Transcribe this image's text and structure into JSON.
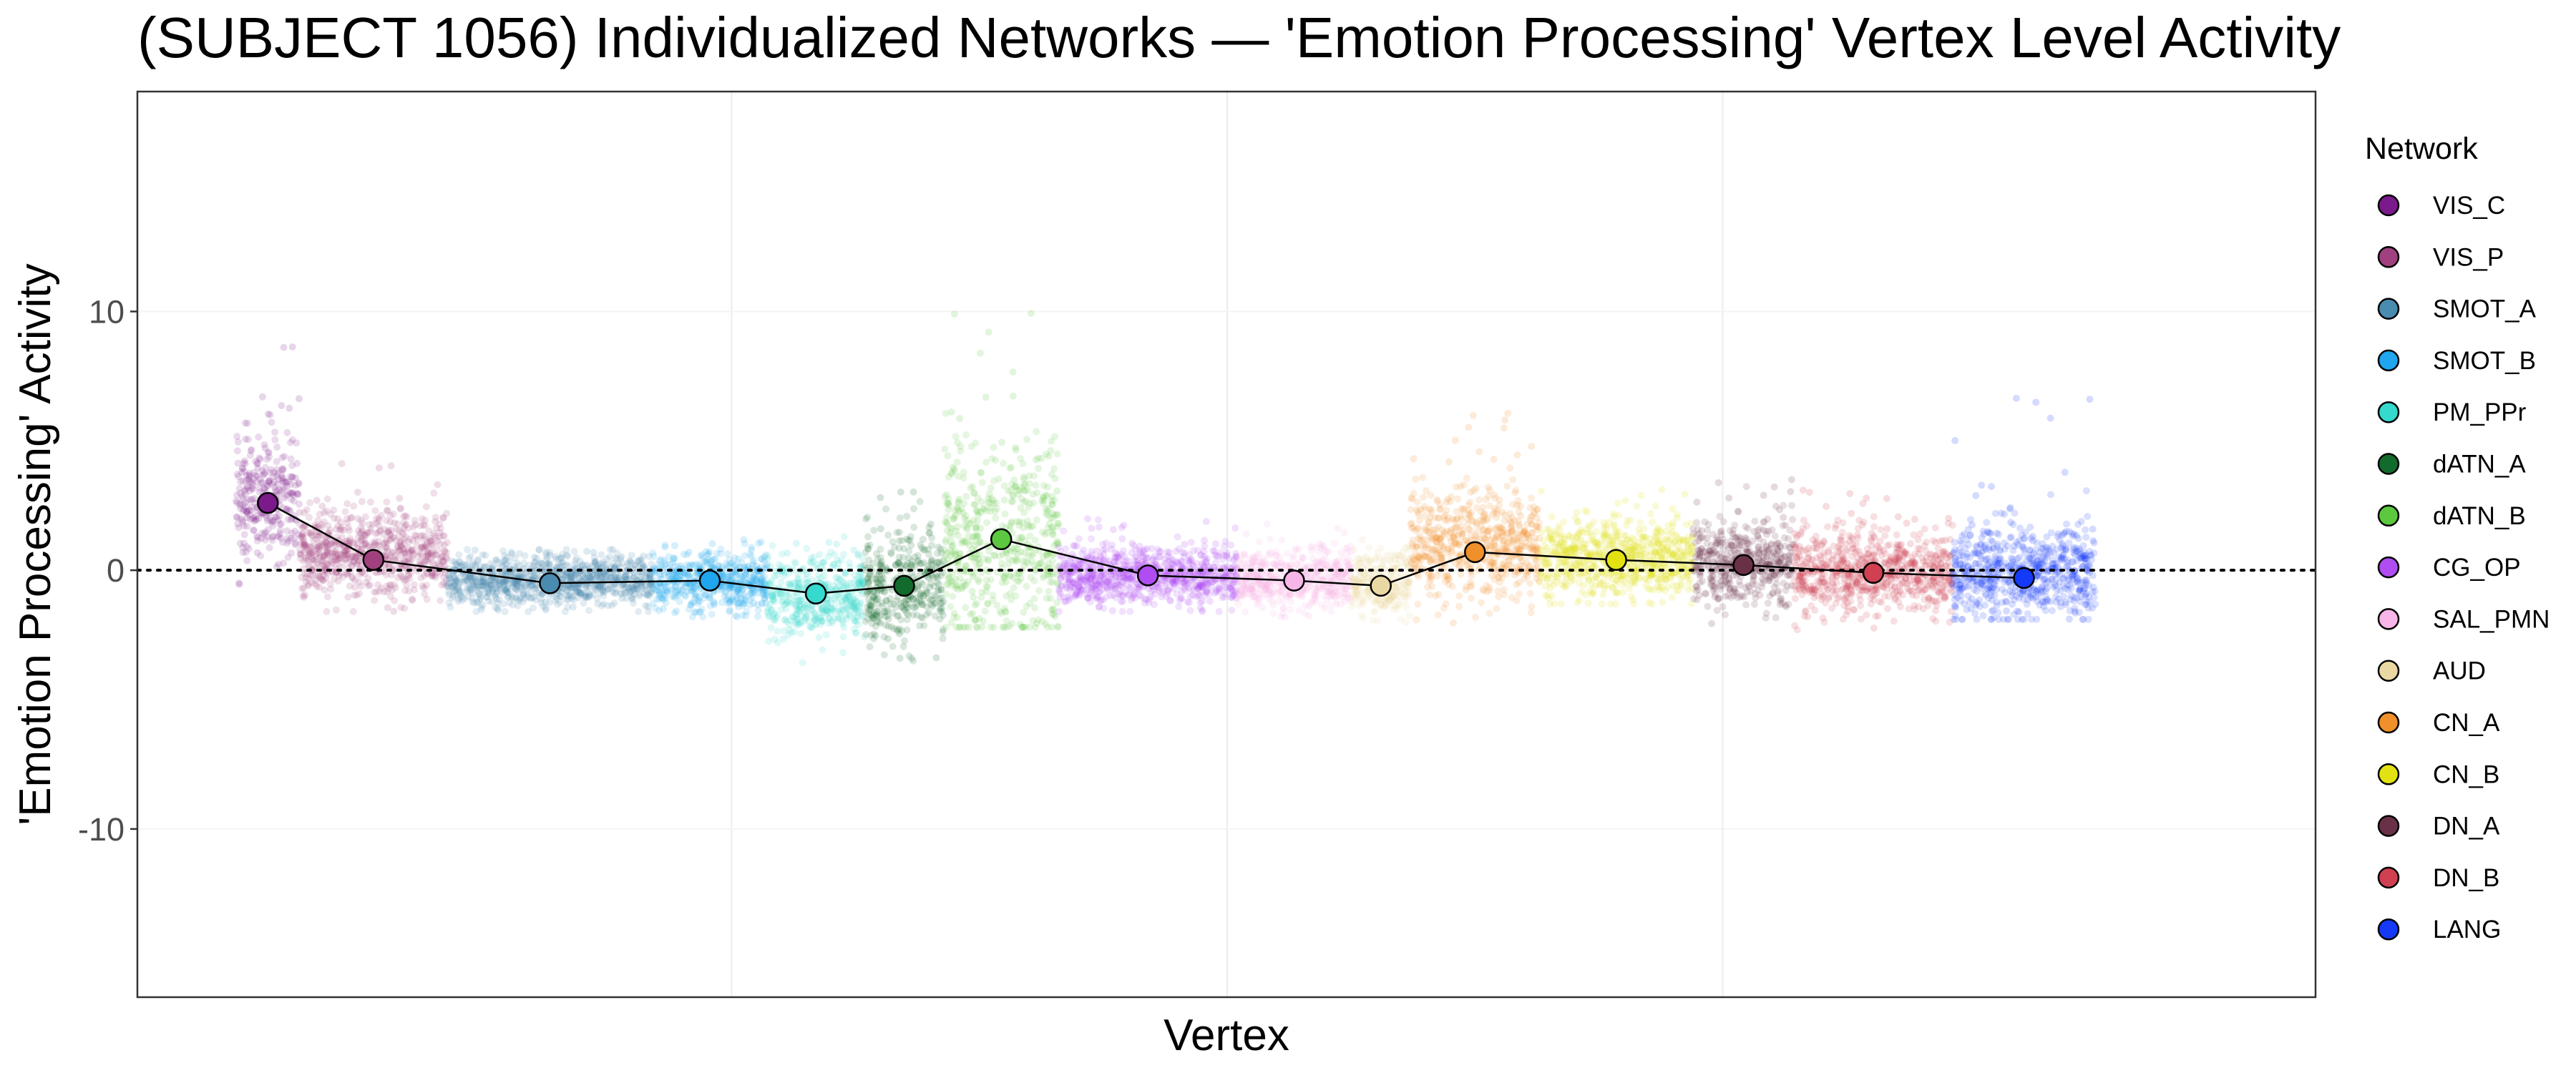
{
  "chart_data": {
    "type": "scatter",
    "title": "(SUBJECT 1056) Individualized Networks — 'Emotion Processing' Vertex Level Activity",
    "xlabel": "Vertex",
    "ylabel": "'Emotion Processing' Activity",
    "ylim": [
      -16.5,
      18.5
    ],
    "yticks": [
      -10,
      0,
      10
    ],
    "reference_line": 0,
    "grid": true,
    "legend_title": "Network",
    "legend_position": "right",
    "x_unit": "vertex index",
    "x_range": [
      0,
      20000
    ],
    "x_gridlines": [
      5000,
      10000,
      15000
    ],
    "networks": [
      {
        "name": "VIS_C",
        "color": "#7B1A8A",
        "x_start": 0,
        "x_end": 640,
        "center": 2.8,
        "spread": 1.2,
        "max": 9.3,
        "min": -1.5,
        "mean": 2.6
      },
      {
        "name": "VIS_P",
        "color": "#A1407F",
        "x_start": 640,
        "x_end": 2130,
        "center": 0.6,
        "spread": 0.8,
        "max": 4.2,
        "min": -1.6,
        "mean": 0.4
      },
      {
        "name": "SMOT_A",
        "color": "#4A8BB0",
        "x_start": 2130,
        "x_end": 4200,
        "center": -0.4,
        "spread": 0.45,
        "max": 0.8,
        "min": -1.6,
        "mean": -0.5
      },
      {
        "name": "SMOT_B",
        "color": "#1FA6EE",
        "x_start": 4200,
        "x_end": 5360,
        "center": -0.4,
        "spread": 0.55,
        "max": 1.3,
        "min": -1.8,
        "mean": -0.4
      },
      {
        "name": "PM_PPr",
        "color": "#35D9CE",
        "x_start": 5360,
        "x_end": 6340,
        "center": -1.0,
        "spread": 0.75,
        "max": 1.3,
        "min": -3.7,
        "mean": -0.9
      },
      {
        "name": "dATN_A",
        "color": "#126B2C",
        "x_start": 6340,
        "x_end": 7140,
        "center": -0.6,
        "spread": 1.1,
        "max": 3.2,
        "min": -3.6,
        "mean": -0.6
      },
      {
        "name": "dATN_B",
        "color": "#5CC840",
        "x_start": 7140,
        "x_end": 8300,
        "center": 1.0,
        "spread": 1.9,
        "max": 10.4,
        "min": -2.2,
        "mean": 1.2
      },
      {
        "name": "CG_OP",
        "color": "#B04DF2",
        "x_start": 8300,
        "x_end": 10100,
        "center": -0.2,
        "spread": 0.55,
        "max": 2.0,
        "min": -1.6,
        "mean": -0.2
      },
      {
        "name": "SAL_PMN",
        "color": "#F6B6E8",
        "x_start": 10100,
        "x_end": 11250,
        "center": -0.3,
        "spread": 0.55,
        "max": 1.8,
        "min": -1.9,
        "mean": -0.4
      },
      {
        "name": "AUD",
        "color": "#EAD8A4",
        "x_start": 11250,
        "x_end": 11850,
        "center": -0.5,
        "spread": 0.6,
        "max": 1.2,
        "min": -2.0,
        "mean": -0.6
      },
      {
        "name": "CN_A",
        "color": "#F0902A",
        "x_start": 11850,
        "x_end": 13150,
        "center": 0.9,
        "spread": 1.0,
        "max": 6.5,
        "min": -2.1,
        "mean": 0.7
      },
      {
        "name": "CN_B",
        "color": "#E2E213",
        "x_start": 13150,
        "x_end": 14700,
        "center": 0.4,
        "spread": 0.7,
        "max": 3.2,
        "min": -1.3,
        "mean": 0.4
      },
      {
        "name": "DN_A",
        "color": "#6A3048",
        "x_start": 14700,
        "x_end": 15720,
        "center": 0.3,
        "spread": 0.8,
        "max": 3.6,
        "min": -2.2,
        "mean": 0.2
      },
      {
        "name": "DN_B",
        "color": "#D04050",
        "x_start": 15720,
        "x_end": 17320,
        "center": -0.1,
        "spread": 0.75,
        "max": 3.2,
        "min": -2.3,
        "mean": -0.1
      },
      {
        "name": "LANG",
        "color": "#1439F7",
        "x_start": 17320,
        "x_end": 18760,
        "center": -0.1,
        "spread": 0.9,
        "max": 7.2,
        "min": -1.9,
        "mean": -0.3
      }
    ]
  }
}
